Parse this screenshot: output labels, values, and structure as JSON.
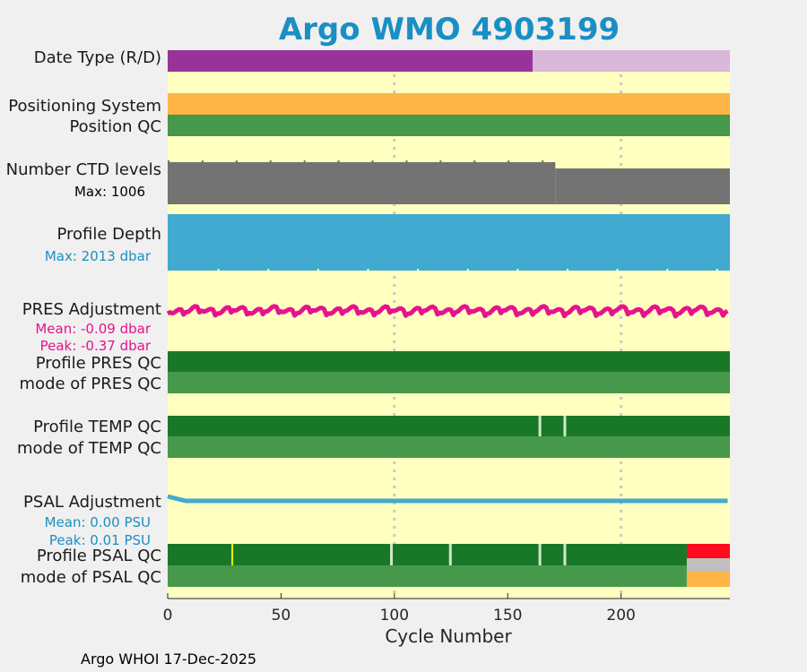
{
  "chart_data": {
    "type": "status-timeline",
    "title": "Argo WMO 4903199",
    "xlabel": "Cycle Number",
    "xlim": [
      0,
      248
    ],
    "xticks": [
      0,
      50,
      100,
      150,
      200
    ],
    "footer": "Argo WHOI 17-Dec-2025",
    "colors": {
      "title": "#1a8fc4",
      "background": "#ffffc0",
      "grid": "#c8c8c8",
      "realtime": "#993399",
      "delayed": "#d9b8d9",
      "gps": "#ffb545",
      "qc_good": "#46994a",
      "qc_profile_a": "#197827",
      "ctd_gray": "#737373",
      "depth_blue": "#42aad0",
      "pres_pink": "#e6138c",
      "psal_blue": "#42aad0",
      "qc_bad": "#ff0a1e",
      "qc_missing": "#bfbfbf",
      "qc_probably_good": "#ffb545",
      "white_tick": "#d0e8c8",
      "yellow_tick": "#f0f000"
    },
    "rows": {
      "date_type": {
        "label": "Date Type (R/D)",
        "realtime_cycles": [
          0,
          161
        ],
        "delayed_cycles": [
          161,
          248
        ]
      },
      "positioning_system": {
        "label": "Positioning System",
        "value": "GPS"
      },
      "position_qc": {
        "label": "Position QC",
        "value": "1"
      },
      "ctd_levels": {
        "label": "Number CTD levels",
        "max_label": "Max: 1006",
        "max": 1006,
        "level_first": 1006,
        "level_after_171": 1000
      },
      "profile_depth": {
        "label": "Profile Depth",
        "max_label": "Max: 2013 dbar",
        "max": 2013
      },
      "pres_adjustment": {
        "label": "PRES Adjustment",
        "mean_label": "Mean: -0.09 dbar",
        "peak_label": "Peak: -0.37 dbar",
        "mean": -0.09,
        "peak": -0.37
      },
      "profile_pres_qc": {
        "label": "Profile PRES QC",
        "value": "A"
      },
      "mode_pres_qc": {
        "label": "mode of PRES QC",
        "value": "1"
      },
      "profile_temp_qc": {
        "label": "Profile TEMP QC",
        "value": "A",
        "exceptions": [
          164,
          175
        ]
      },
      "mode_temp_qc": {
        "label": "mode of TEMP QC",
        "value": "1"
      },
      "psal_adjustment": {
        "label": "PSAL Adjustment",
        "mean_label": "Mean: 0.00 PSU",
        "peak_label": "Peak: 0.01 PSU",
        "mean": 0.0,
        "peak": 0.01
      },
      "profile_psal_qc": {
        "label": "Profile PSAL QC",
        "value": "A",
        "yellow_exceptions": [
          28.5
        ],
        "white_exceptions": [
          98.5,
          124.5,
          164,
          175
        ],
        "bad_from": 229
      },
      "mode_psal_qc": {
        "label": "mode of PSAL QC",
        "value": "1",
        "probably_good_from": 229
      }
    }
  }
}
